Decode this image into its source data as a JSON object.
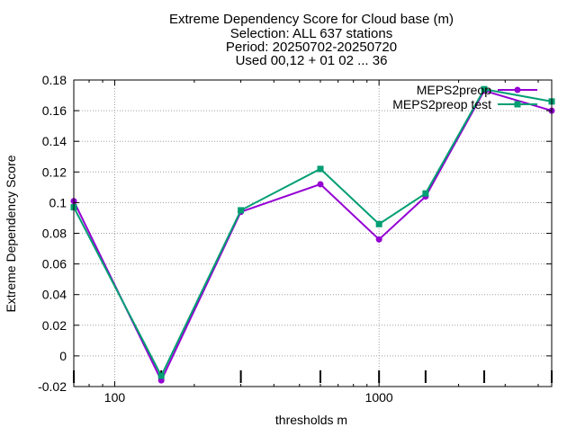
{
  "chart_data": {
    "type": "line",
    "title_lines": [
      "Extreme Dependency Score  for Cloud base (m)",
      "Selection: ALL    637 stations",
      "Period: 20250702-20250720",
      "Used 00,12 + 01 02 ... 36"
    ],
    "xlabel": "thresholds m",
    "ylabel": "Extreme Dependency Score",
    "x_scale": "log",
    "xlim": [
      70,
      4500
    ],
    "ylim": [
      -0.02,
      0.18
    ],
    "x_ticks": [
      100,
      1000
    ],
    "x_tick_labels": [
      "100",
      "1000"
    ],
    "y_ticks": [
      -0.02,
      0,
      0.02,
      0.04,
      0.06,
      0.08,
      0.1,
      0.12,
      0.14,
      0.16,
      0.18
    ],
    "y_tick_labels": [
      "-0.02",
      "0",
      "0.02",
      "0.04",
      "0.06",
      "0.08",
      "0.1",
      "0.12",
      "0.14",
      "0.16",
      "0.18"
    ],
    "grid": true,
    "legend_position": "top-right",
    "series": [
      {
        "name": "MEPS2preop",
        "color": "#9400d3",
        "x": [
          70,
          150,
          300,
          600,
          1000,
          1500,
          2500,
          4500
        ],
        "y": [
          0.101,
          -0.016,
          0.094,
          0.112,
          0.076,
          0.104,
          0.173,
          0.16
        ]
      },
      {
        "name": "MEPS2preop test",
        "color": "#009e73",
        "x": [
          70,
          150,
          300,
          600,
          1000,
          1500,
          2500,
          4500
        ],
        "y": [
          0.097,
          -0.013,
          0.095,
          0.122,
          0.086,
          0.106,
          0.174,
          0.166
        ]
      }
    ],
    "threshold_markers_x": [
      70,
      150,
      300,
      600,
      1000,
      1500,
      2500,
      4500
    ]
  }
}
